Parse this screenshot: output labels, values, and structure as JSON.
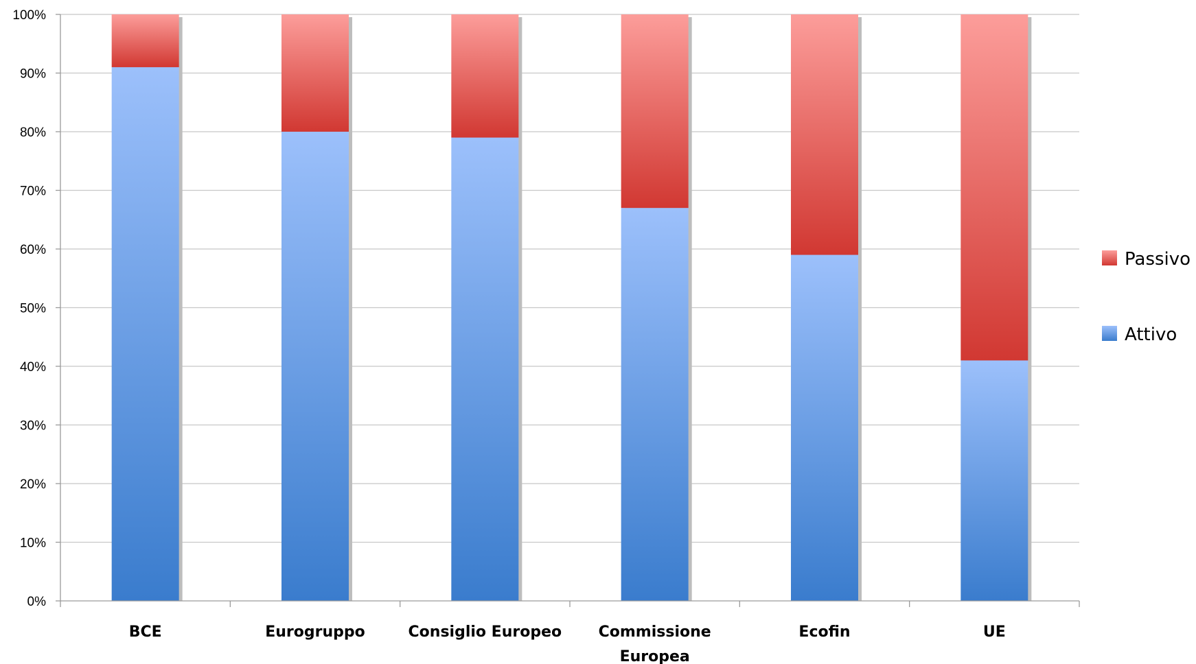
{
  "chart_data": {
    "type": "bar",
    "stacked": true,
    "normalized": true,
    "categories": [
      [
        "BCE"
      ],
      [
        "Eurogruppo"
      ],
      [
        "Consiglio Europeo"
      ],
      [
        "Commissione",
        "Europea"
      ],
      [
        "Ecofin"
      ],
      [
        "UE"
      ]
    ],
    "series": [
      {
        "name": "Attivo",
        "values": [
          91,
          80,
          79,
          67,
          59,
          41
        ],
        "color": "#4a86d8"
      },
      {
        "name": "Passivo",
        "values": [
          9,
          20,
          21,
          33,
          41,
          59
        ],
        "color": "#e0413a"
      }
    ],
    "y_ticks": [
      "0%",
      "10%",
      "20%",
      "30%",
      "40%",
      "50%",
      "60%",
      "70%",
      "80%",
      "90%",
      "100%"
    ],
    "ylim": [
      0,
      100
    ],
    "grid": true,
    "legend": {
      "placement": "right",
      "order": [
        "Passivo",
        "Attivo"
      ]
    }
  }
}
